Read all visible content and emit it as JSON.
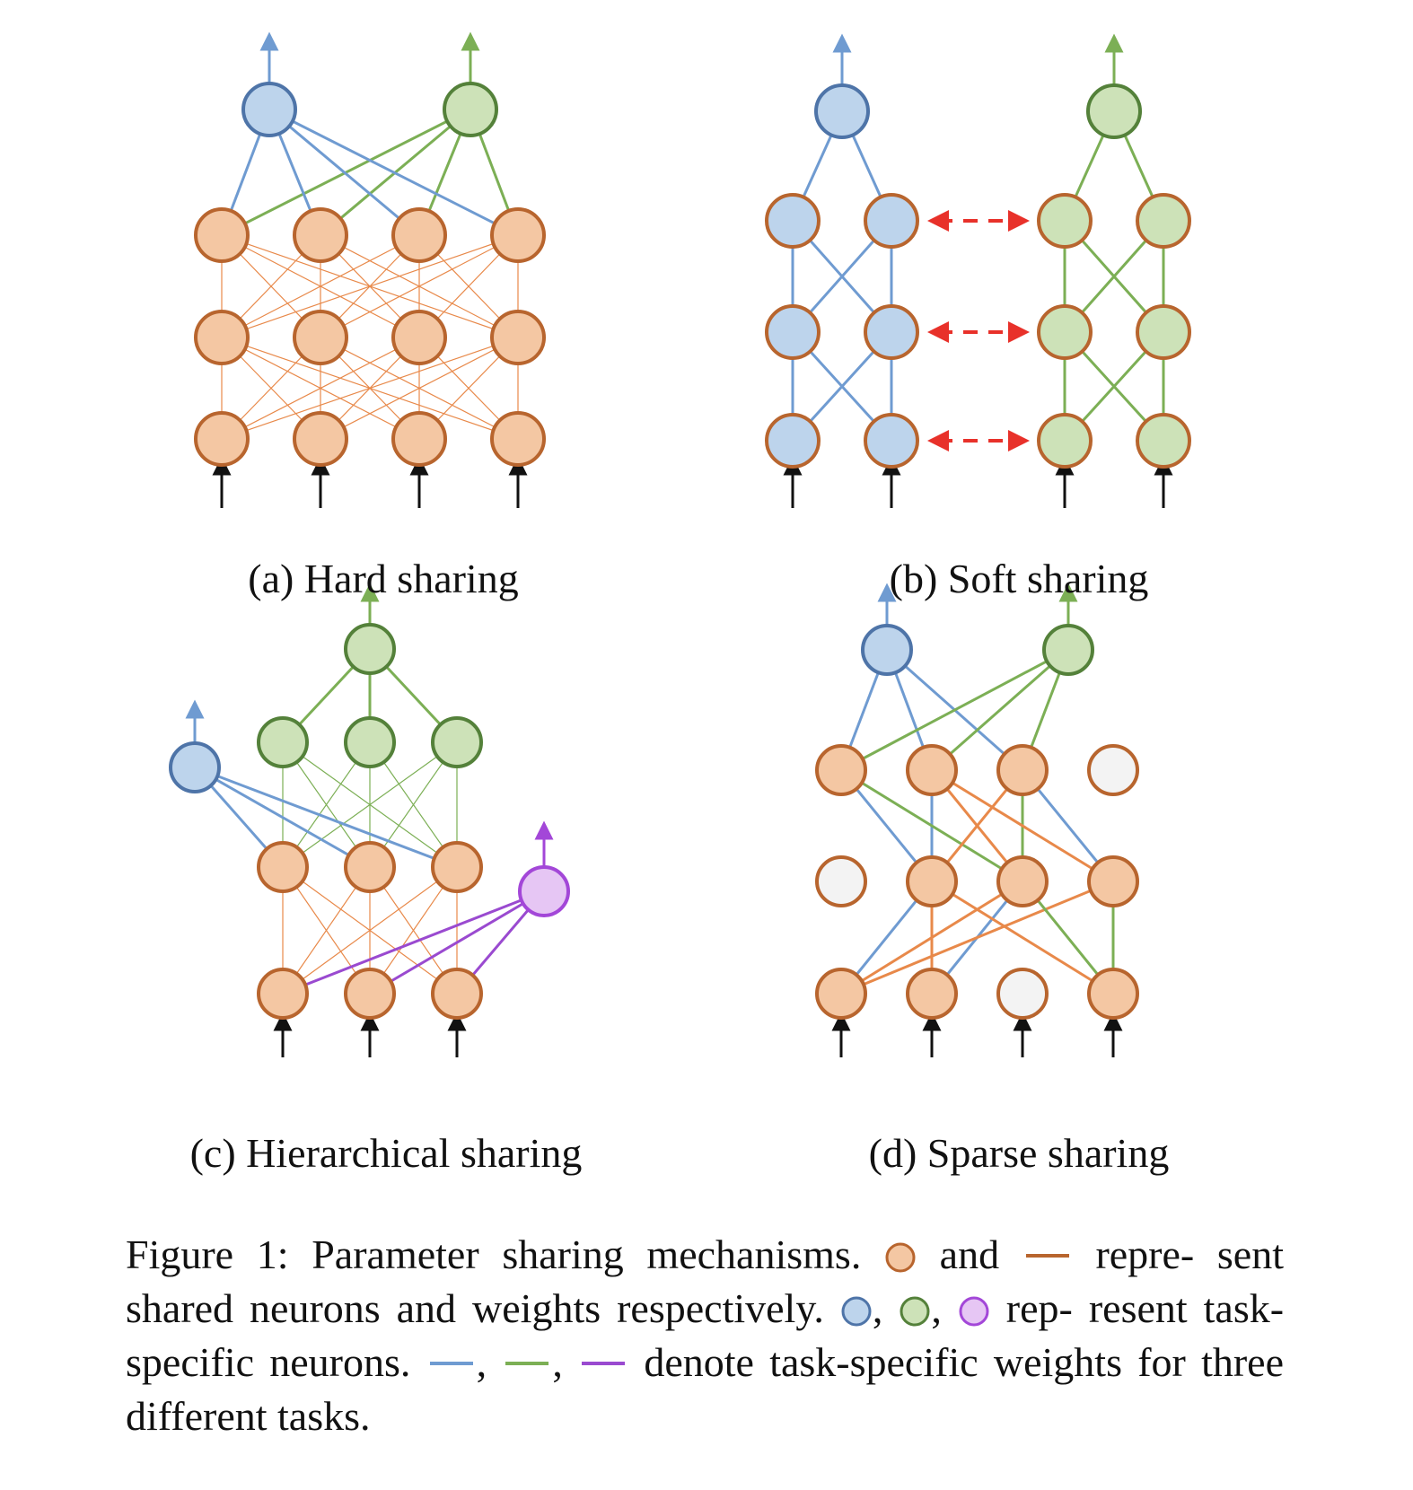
{
  "colors": {
    "shared_fill": "#f4c7a3",
    "shared_stroke": "#b8652e",
    "shared_line": "#e8894a",
    "shared_line_caption": "#b8652e",
    "blue_fill": "#bdd4ec",
    "blue_stroke": "#4e74a8",
    "blue_line": "#6f9bd1",
    "green_fill": "#cde2b8",
    "green_stroke": "#54813a",
    "green_line": "#7caf55",
    "purple_fill": "#e6c6f4",
    "purple_stroke": "#a347d8",
    "purple_line": "#9a4ad0",
    "empty_fill": "#f3f3f3",
    "empty_stroke": "#b8652e",
    "red_arrow": "#e8312a",
    "input_arrow": "#111111"
  },
  "panels": [
    {
      "id": "a",
      "label": "(a) Hard sharing"
    },
    {
      "id": "b",
      "label": "(b) Soft sharing"
    },
    {
      "id": "c",
      "label": "(c) Hierarchical sharing"
    },
    {
      "id": "d",
      "label": "(d) Sparse sharing"
    }
  ],
  "caption": {
    "prefix": "Figure 1: Parameter sharing mechanisms.",
    "and": "and",
    "repre": "repre-",
    "sent": "sent shared neurons and weights respectively.",
    "comma1": ",",
    "comma2": ",",
    "rep": "rep-",
    "resent": "resent task-specific neurons.",
    "comma3": ",",
    "comma4": ",",
    "denote": "denote task-specific",
    "weights": "weights for three different tasks."
  }
}
